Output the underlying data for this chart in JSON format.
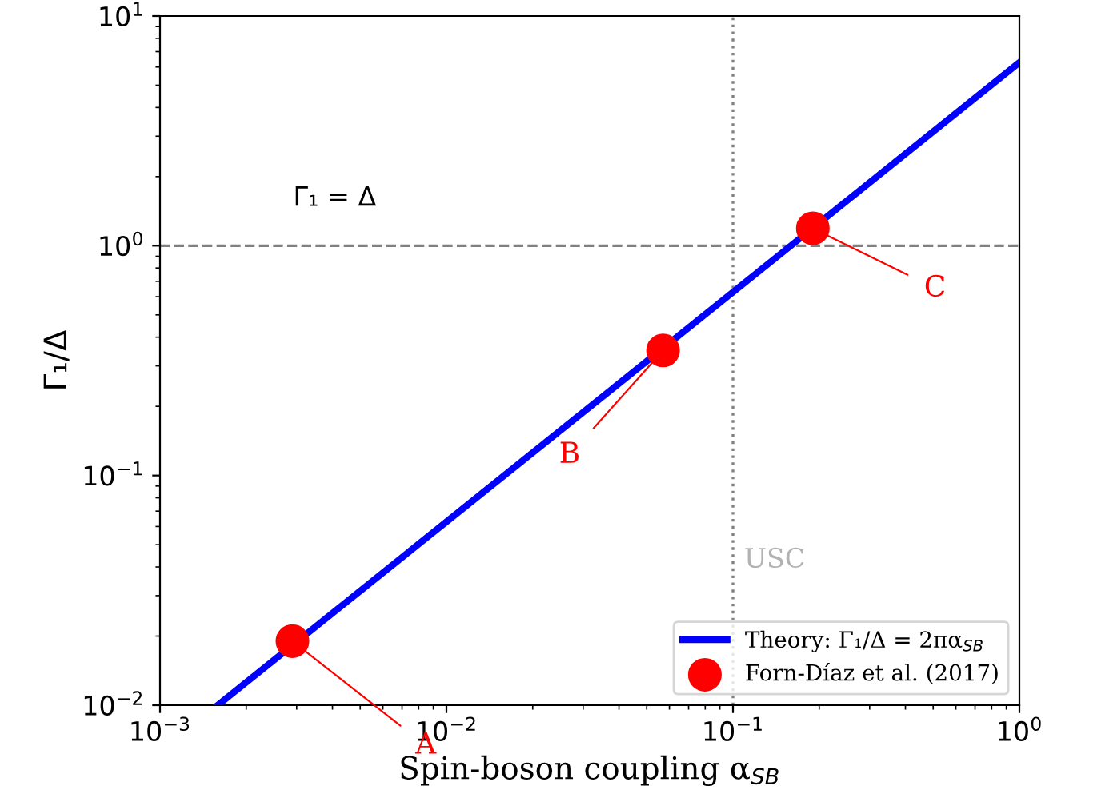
{
  "chart_data": {
    "type": "line",
    "xlabel": "Spin-boson coupling α$_{SB}$",
    "ylabel": "Γ₁/Δ",
    "log": "xy",
    "xlim": [
      0.001,
      1
    ],
    "ylim": [
      0.01,
      10
    ],
    "xticks": [
      {
        "value": 0.001,
        "label": "10$^{−3}$"
      },
      {
        "value": 0.01,
        "label": "10$^{−2}$"
      },
      {
        "value": 0.1,
        "label": "10$^{−1}$"
      },
      {
        "value": 1,
        "label": "10$^{0}$"
      }
    ],
    "yticks": [
      {
        "value": 0.01,
        "label": "10$^{−2}$"
      },
      {
        "value": 0.1,
        "label": "10$^{−1}$"
      },
      {
        "value": 1,
        "label": "10$^{0}$"
      },
      {
        "value": 10,
        "label": "10$^{1}$"
      }
    ],
    "series": [
      {
        "name": "Theory: Γ₁/Δ = 2πα$_{SB}$",
        "color": "#0000ff",
        "x": [
          0.00159,
          1
        ],
        "values": [
          0.01,
          6.28
        ],
        "line_style": "solid",
        "marker": "none"
      },
      {
        "name": "Forn-Díaz et al. (2017)",
        "type": "scatter",
        "color": "#ff0000",
        "x": [
          0.0029,
          0.057,
          0.19
        ],
        "values": [
          0.019,
          0.35,
          1.19
        ],
        "marker": "circle"
      }
    ],
    "ref_lines": [
      {
        "axis": "x",
        "value": 0.1,
        "label": "USC",
        "color": "#808080",
        "line_style": "dotted"
      },
      {
        "axis": "y",
        "value": 1,
        "label": "Γ₁ = Δ",
        "color": "#808080",
        "line_style": "dashed"
      }
    ],
    "annotations": [
      {
        "text": "A",
        "x": 0.0029,
        "y": 0.019
      },
      {
        "text": "B",
        "x": 0.057,
        "y": 0.35
      },
      {
        "text": "C",
        "x": 0.19,
        "y": 1.19
      }
    ],
    "legend": "bottom right",
    "grid": false
  }
}
